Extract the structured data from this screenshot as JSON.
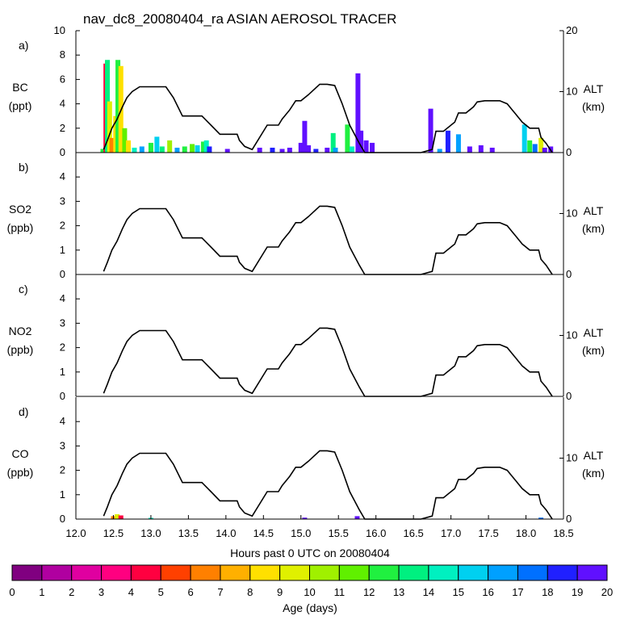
{
  "chart_data": {
    "type": "line",
    "title": "nav_dc8_20080404_ra ASIAN AEROSOL TRACER",
    "xlabel": "Hours past 0 UTC on 20080404",
    "xlim": [
      12.0,
      18.5
    ],
    "x_ticks": [
      "12.0",
      "12.5",
      "13.0",
      "13.5",
      "14.0",
      "14.5",
      "15.0",
      "15.5",
      "16.0",
      "16.5",
      "17.0",
      "17.5",
      "18.0",
      "18.5"
    ],
    "right_axis": {
      "label": "ALT",
      "unit": "(km)",
      "range": [
        0,
        20
      ]
    },
    "altitude_km": {
      "x": [
        12.37,
        12.42,
        12.48,
        12.55,
        12.62,
        12.68,
        12.75,
        12.85,
        12.93,
        13.2,
        13.3,
        13.42,
        13.55,
        13.68,
        13.8,
        13.92,
        14.0,
        14.15,
        14.18,
        14.25,
        14.35,
        14.55,
        14.7,
        14.75,
        14.85,
        14.93,
        15.0,
        15.1,
        15.25,
        15.35,
        15.45,
        15.55,
        15.65,
        15.78,
        15.85,
        16.6,
        16.75,
        16.8,
        16.83,
        16.9,
        17.05,
        17.1,
        17.2,
        17.3,
        17.35,
        17.45,
        17.65,
        17.75,
        17.85,
        17.95,
        18.05,
        18.17,
        18.2,
        18.27,
        18.35
      ],
      "y": [
        0.5,
        2,
        4,
        5.5,
        7.5,
        9,
        10,
        10.8,
        10.8,
        10.8,
        9,
        6,
        6,
        6,
        4.5,
        3,
        3,
        3,
        2,
        1,
        0.5,
        4.5,
        4.5,
        5.5,
        7,
        8.5,
        8.5,
        9.5,
        11.2,
        11.2,
        11,
        8,
        4.5,
        1.5,
        0,
        0,
        0.5,
        3.5,
        3.5,
        3.5,
        5,
        6.5,
        6.5,
        7.5,
        8.3,
        8.5,
        8.5,
        8,
        6.5,
        5,
        4,
        4,
        2.5,
        1.5,
        0
      ]
    },
    "panels": [
      {
        "id": "a",
        "tag": "a)",
        "species": "BC",
        "unit": "(ppt)",
        "ylim": [
          0,
          10
        ],
        "y_ticks": [
          "0",
          "2",
          "4",
          "6",
          "8",
          "10"
        ],
        "alt_ticks": [
          "0",
          "10",
          "20"
        ],
        "tracer_peaks": [
          {
            "x": 12.36,
            "value": 0.3,
            "age": 12
          },
          {
            "x": 12.4,
            "value": 7.3,
            "age": 4
          },
          {
            "x": 12.42,
            "value": 7.6,
            "age": 13
          },
          {
            "x": 12.45,
            "value": 4.2,
            "age": 9
          },
          {
            "x": 12.48,
            "value": 1.2,
            "age": 6
          },
          {
            "x": 12.53,
            "value": 3.0,
            "age": 8
          },
          {
            "x": 12.56,
            "value": 7.6,
            "age": 12
          },
          {
            "x": 12.6,
            "value": 7.1,
            "age": 8
          },
          {
            "x": 12.65,
            "value": 2.0,
            "age": 11
          },
          {
            "x": 12.7,
            "value": 1.0,
            "age": 8
          },
          {
            "x": 12.78,
            "value": 0.4,
            "age": 14
          },
          {
            "x": 12.88,
            "value": 0.5,
            "age": 16
          },
          {
            "x": 13.0,
            "value": 0.8,
            "age": 12
          },
          {
            "x": 13.08,
            "value": 1.3,
            "age": 15
          },
          {
            "x": 13.15,
            "value": 0.5,
            "age": 13
          },
          {
            "x": 13.25,
            "value": 1.0,
            "age": 10
          },
          {
            "x": 13.35,
            "value": 0.4,
            "age": 16
          },
          {
            "x": 13.45,
            "value": 0.5,
            "age": 12
          },
          {
            "x": 13.55,
            "value": 0.7,
            "age": 11
          },
          {
            "x": 13.62,
            "value": 0.6,
            "age": 15
          },
          {
            "x": 13.7,
            "value": 0.9,
            "age": 12
          },
          {
            "x": 13.74,
            "value": 1.0,
            "age": 14
          },
          {
            "x": 13.78,
            "value": 0.5,
            "age": 18
          },
          {
            "x": 14.02,
            "value": 0.3,
            "age": 19
          },
          {
            "x": 14.45,
            "value": 0.4,
            "age": 19
          },
          {
            "x": 14.62,
            "value": 0.4,
            "age": 18
          },
          {
            "x": 14.75,
            "value": 0.3,
            "age": 19
          },
          {
            "x": 14.85,
            "value": 0.4,
            "age": 19
          },
          {
            "x": 15.0,
            "value": 0.8,
            "age": 19
          },
          {
            "x": 15.05,
            "value": 2.6,
            "age": 19
          },
          {
            "x": 15.1,
            "value": 0.6,
            "age": 19
          },
          {
            "x": 15.2,
            "value": 0.3,
            "age": 18
          },
          {
            "x": 15.35,
            "value": 0.4,
            "age": 19
          },
          {
            "x": 15.43,
            "value": 1.6,
            "age": 13
          },
          {
            "x": 15.46,
            "value": 0.4,
            "age": 16
          },
          {
            "x": 15.62,
            "value": 2.3,
            "age": 12
          },
          {
            "x": 15.68,
            "value": 0.5,
            "age": 14
          },
          {
            "x": 15.76,
            "value": 6.5,
            "age": 19
          },
          {
            "x": 15.8,
            "value": 1.8,
            "age": 19
          },
          {
            "x": 15.87,
            "value": 1.0,
            "age": 19
          },
          {
            "x": 15.95,
            "value": 0.8,
            "age": 19
          },
          {
            "x": 16.73,
            "value": 3.6,
            "age": 19
          },
          {
            "x": 16.85,
            "value": 0.3,
            "age": 16
          },
          {
            "x": 16.96,
            "value": 1.8,
            "age": 18
          },
          {
            "x": 17.1,
            "value": 1.5,
            "age": 16
          },
          {
            "x": 17.25,
            "value": 0.5,
            "age": 19
          },
          {
            "x": 17.4,
            "value": 0.6,
            "age": 19
          },
          {
            "x": 17.55,
            "value": 0.4,
            "age": 19
          },
          {
            "x": 17.98,
            "value": 2.3,
            "age": 15
          },
          {
            "x": 18.05,
            "value": 1.0,
            "age": 12
          },
          {
            "x": 18.12,
            "value": 0.7,
            "age": 17
          },
          {
            "x": 18.2,
            "value": 1.2,
            "age": 9
          },
          {
            "x": 18.25,
            "value": 0.4,
            "age": 19
          },
          {
            "x": 18.33,
            "value": 0.5,
            "age": 19
          }
        ]
      },
      {
        "id": "b",
        "tag": "b)",
        "species": "SO2",
        "unit": "(ppb)",
        "ylim": [
          0,
          5
        ],
        "y_ticks": [
          "0",
          "1",
          "2",
          "3",
          "4"
        ],
        "alt_ticks": [
          "0",
          "10"
        ],
        "tracer_peaks": []
      },
      {
        "id": "c",
        "tag": "c)",
        "species": "NO2",
        "unit": "(ppb)",
        "ylim": [
          0,
          5
        ],
        "y_ticks": [
          "0",
          "1",
          "2",
          "3",
          "4"
        ],
        "alt_ticks": [
          "0",
          "10"
        ],
        "tracer_peaks": []
      },
      {
        "id": "d",
        "tag": "d)",
        "species": "CO",
        "unit": "(ppb)",
        "ylim": [
          0,
          5
        ],
        "y_ticks": [
          "0",
          "1",
          "2",
          "3",
          "4"
        ],
        "alt_ticks": [
          "0",
          "10"
        ],
        "tracer_peaks": [
          {
            "x": 12.5,
            "value": 0.12,
            "age": 6
          },
          {
            "x": 12.55,
            "value": 0.2,
            "age": 9
          },
          {
            "x": 12.6,
            "value": 0.15,
            "age": 4
          },
          {
            "x": 13.0,
            "value": 0.05,
            "age": 14
          },
          {
            "x": 15.05,
            "value": 0.06,
            "age": 19
          },
          {
            "x": 15.75,
            "value": 0.12,
            "age": 19
          },
          {
            "x": 18.2,
            "value": 0.06,
            "age": 17
          }
        ]
      }
    ],
    "colorbar": {
      "label": "Age (days)",
      "ticks": [
        "0",
        "1",
        "2",
        "3",
        "4",
        "5",
        "6",
        "7",
        "8",
        "9",
        "10",
        "11",
        "12",
        "13",
        "14",
        "15",
        "16",
        "17",
        "18",
        "19",
        "20"
      ],
      "colors": [
        "#800080",
        "#b000a0",
        "#e000a0",
        "#ff0080",
        "#ff0040",
        "#ff4000",
        "#ff8000",
        "#ffb000",
        "#ffe000",
        "#e0f000",
        "#a0f000",
        "#60f000",
        "#20f040",
        "#00f080",
        "#00f0c0",
        "#00d0f0",
        "#00a0ff",
        "#0070ff",
        "#2020ff",
        "#6010ff"
      ]
    }
  }
}
